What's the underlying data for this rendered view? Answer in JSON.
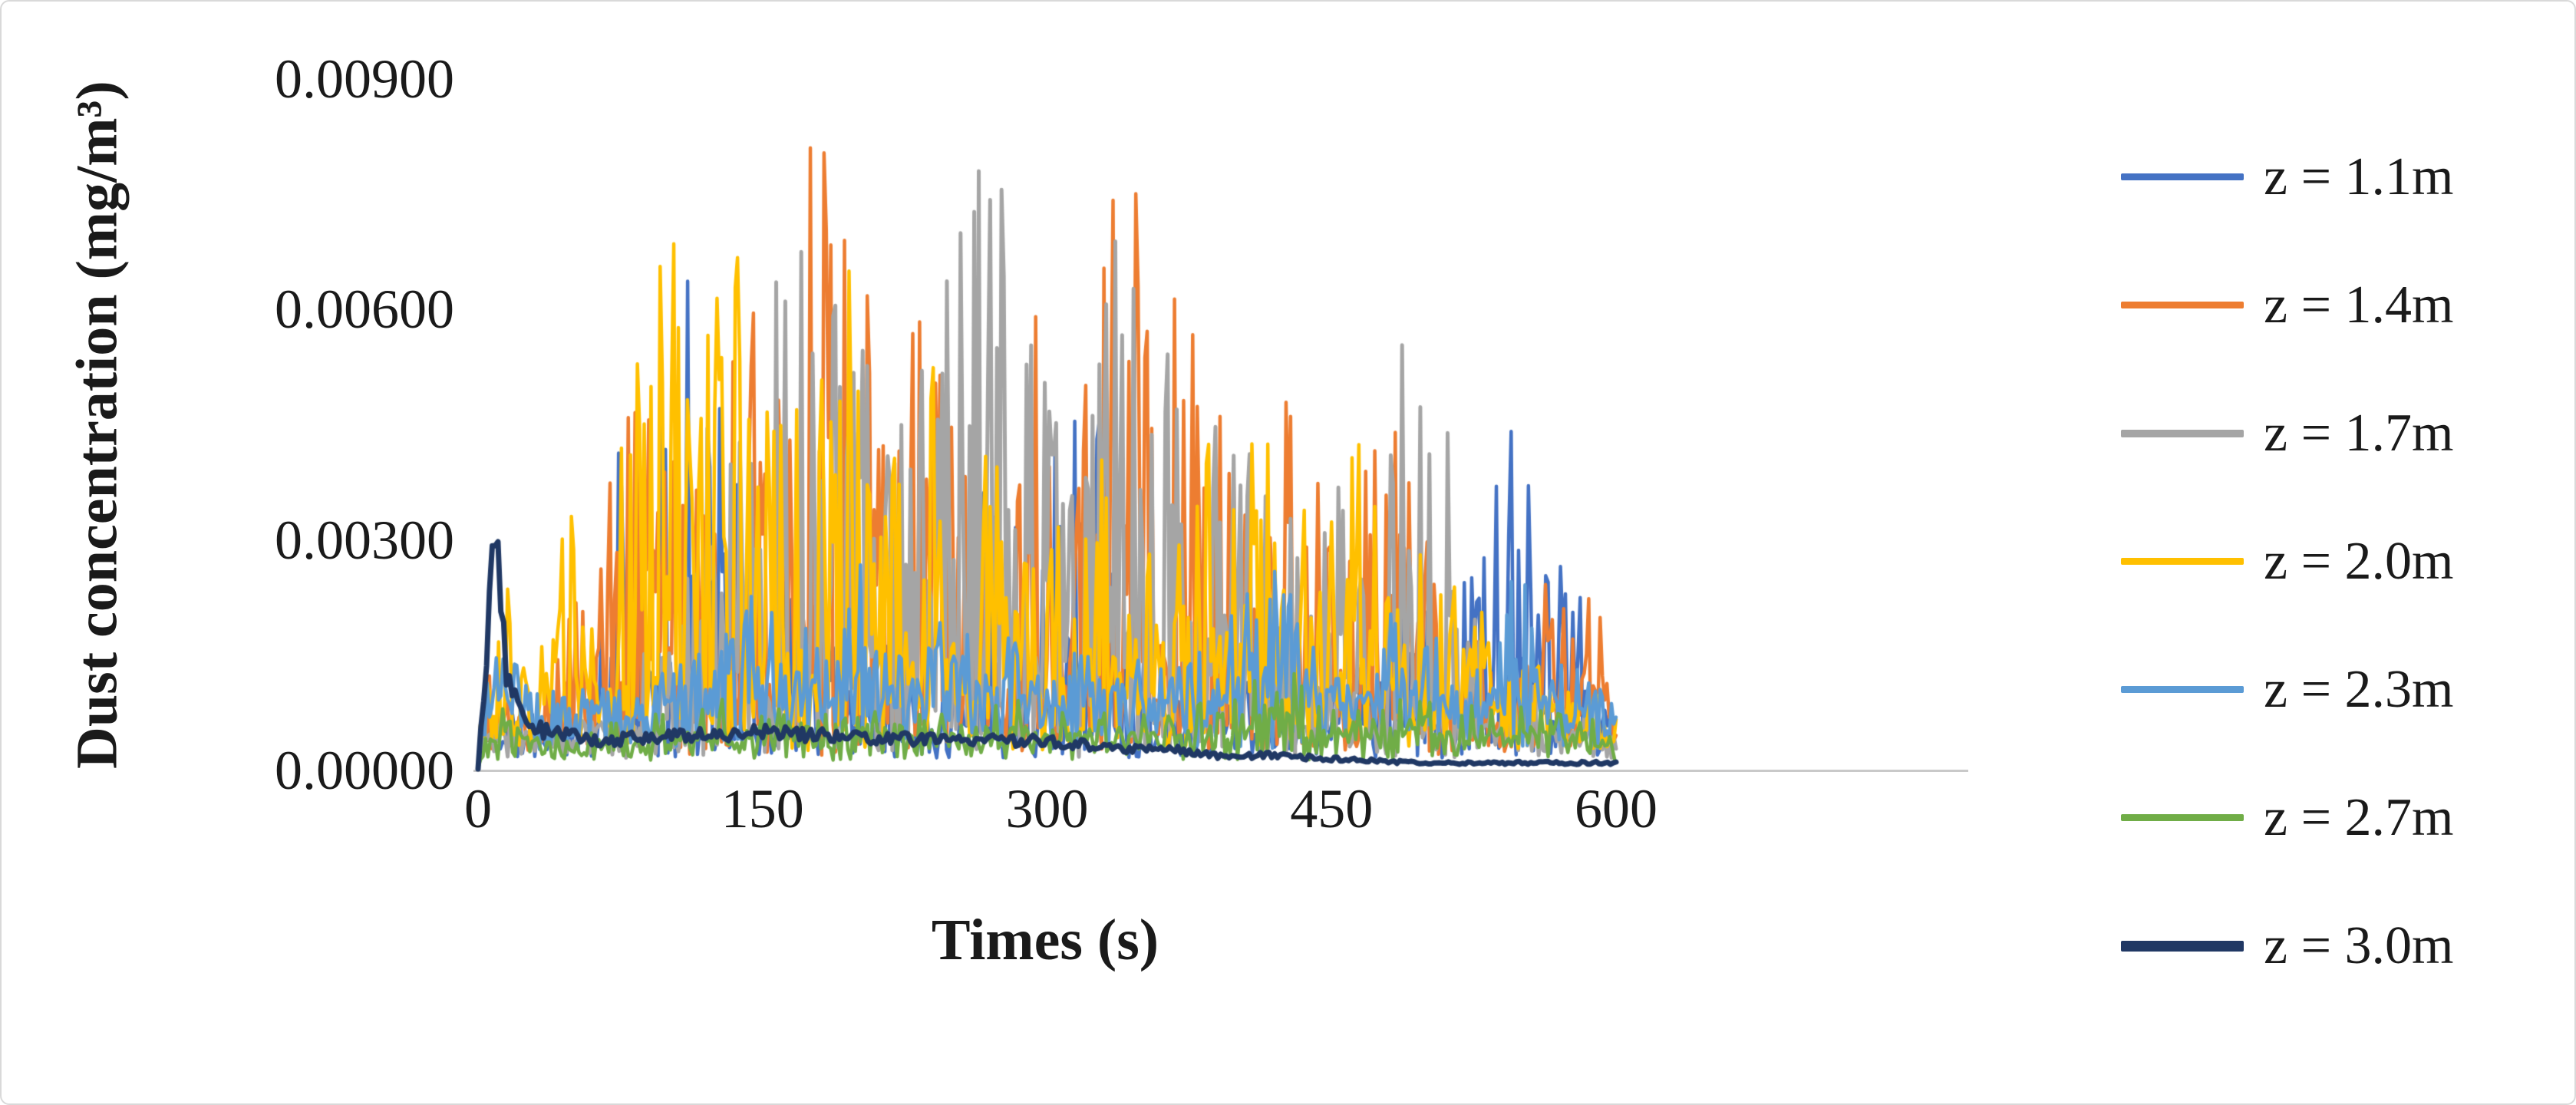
{
  "chart_data": {
    "type": "line",
    "title": "",
    "xlabel": "Times (s)",
    "ylabel": "Dust concentration (mg/m³)",
    "xlim": [
      0,
      600
    ],
    "ylim": [
      0,
      0.009
    ],
    "x_ticks": [
      {
        "value": 0,
        "label": "0"
      },
      {
        "value": 150,
        "label": "150"
      },
      {
        "value": 300,
        "label": "300"
      },
      {
        "value": 450,
        "label": "450"
      },
      {
        "value": 600,
        "label": "600"
      }
    ],
    "y_ticks": [
      {
        "value": 0.0,
        "label": "0.00000"
      },
      {
        "value": 0.003,
        "label": "0.00300"
      },
      {
        "value": 0.006,
        "label": "0.00600"
      },
      {
        "value": 0.009,
        "label": "0.00900"
      }
    ],
    "grid": "baseline-only",
    "legend_position": "right",
    "series": [
      {
        "name": "z = 1.1m",
        "color": "#4472C4",
        "line_width": 4.5,
        "seed": 11,
        "dt": 1.3,
        "mode": "spiky",
        "power": 3.0,
        "baseline": 0.0005,
        "envelope": [
          [
            0,
            0.0006
          ],
          [
            5,
            0.002
          ],
          [
            20,
            0.0008
          ],
          [
            60,
            0.001
          ],
          [
            80,
            0.0062
          ],
          [
            95,
            0.0045
          ],
          [
            115,
            0.0078
          ],
          [
            125,
            0.0074
          ],
          [
            140,
            0.003
          ],
          [
            200,
            0.0025
          ],
          [
            250,
            0.002
          ],
          [
            290,
            0.0073
          ],
          [
            310,
            0.0045
          ],
          [
            325,
            0.0063
          ],
          [
            340,
            0.002
          ],
          [
            380,
            0.0022
          ],
          [
            420,
            0.002
          ],
          [
            450,
            0.0015
          ],
          [
            480,
            0.002
          ],
          [
            520,
            0.0035
          ],
          [
            540,
            0.0056
          ],
          [
            560,
            0.0032
          ],
          [
            575,
            0.0032
          ],
          [
            590,
            0.001
          ],
          [
            600,
            0.0008
          ]
        ]
      },
      {
        "name": "z = 1.4m",
        "color": "#ED7D31",
        "line_width": 4.5,
        "seed": 14,
        "dt": 1.2,
        "mode": "spiky",
        "power": 2.4,
        "baseline": 0.0006,
        "envelope": [
          [
            0,
            0.0006
          ],
          [
            8,
            0.0015
          ],
          [
            25,
            0.0008
          ],
          [
            55,
            0.0028
          ],
          [
            65,
            0.0028
          ],
          [
            85,
            0.0073
          ],
          [
            100,
            0.0045
          ],
          [
            120,
            0.0044
          ],
          [
            140,
            0.006
          ],
          [
            160,
            0.0055
          ],
          [
            175,
            0.0086
          ],
          [
            185,
            0.0086
          ],
          [
            200,
            0.008
          ],
          [
            215,
            0.005
          ],
          [
            230,
            0.0068
          ],
          [
            245,
            0.007
          ],
          [
            260,
            0.0058
          ],
          [
            275,
            0.0046
          ],
          [
            290,
            0.0062
          ],
          [
            310,
            0.0045
          ],
          [
            330,
            0.0076
          ],
          [
            345,
            0.0082
          ],
          [
            360,
            0.0068
          ],
          [
            375,
            0.007
          ],
          [
            395,
            0.0044
          ],
          [
            410,
            0.0042
          ],
          [
            425,
            0.0057
          ],
          [
            440,
            0.0042
          ],
          [
            455,
            0.0028
          ],
          [
            470,
            0.0058
          ],
          [
            485,
            0.0052
          ],
          [
            500,
            0.003
          ],
          [
            520,
            0.002
          ],
          [
            540,
            0.0015
          ],
          [
            555,
            0.0018
          ],
          [
            570,
            0.0032
          ],
          [
            580,
            0.0015
          ],
          [
            590,
            0.0033
          ],
          [
            600,
            0.0008
          ]
        ]
      },
      {
        "name": "z = 1.7m",
        "color": "#A5A5A5",
        "line_width": 5,
        "seed": 17,
        "dt": 1.2,
        "mode": "spiky",
        "power": 2.6,
        "baseline": 0.0005,
        "envelope": [
          [
            0,
            0.0005
          ],
          [
            10,
            0.001
          ],
          [
            40,
            0.0006
          ],
          [
            90,
            0.0015
          ],
          [
            120,
            0.0035
          ],
          [
            135,
            0.0077
          ],
          [
            150,
            0.0085
          ],
          [
            165,
            0.0083
          ],
          [
            180,
            0.0065
          ],
          [
            195,
            0.0062
          ],
          [
            210,
            0.0078
          ],
          [
            225,
            0.006
          ],
          [
            240,
            0.0061
          ],
          [
            255,
            0.0085
          ],
          [
            265,
            0.0084
          ],
          [
            280,
            0.0077
          ],
          [
            295,
            0.0055
          ],
          [
            310,
            0.0045
          ],
          [
            325,
            0.005
          ],
          [
            340,
            0.0075
          ],
          [
            355,
            0.0065
          ],
          [
            370,
            0.0065
          ],
          [
            385,
            0.007
          ],
          [
            400,
            0.0042
          ],
          [
            415,
            0.0044
          ],
          [
            430,
            0.0038
          ],
          [
            445,
            0.003
          ],
          [
            460,
            0.0079
          ],
          [
            475,
            0.005
          ],
          [
            490,
            0.006
          ],
          [
            505,
            0.006
          ],
          [
            515,
            0.0042
          ],
          [
            525,
            0.003
          ],
          [
            540,
            0.002
          ],
          [
            560,
            0.001
          ],
          [
            580,
            0.0008
          ],
          [
            600,
            0.0006
          ]
        ]
      },
      {
        "name": "z = 2.0m",
        "color": "#FFC000",
        "line_width": 4.5,
        "seed": 20,
        "dt": 1.2,
        "mode": "spiky",
        "power": 2.2,
        "baseline": 0.0008,
        "envelope": [
          [
            0,
            0.0008
          ],
          [
            15,
            0.0026
          ],
          [
            30,
            0.001
          ],
          [
            55,
            0.0055
          ],
          [
            70,
            0.0045
          ],
          [
            85,
            0.006
          ],
          [
            100,
            0.0078
          ],
          [
            115,
            0.0055
          ],
          [
            130,
            0.0084
          ],
          [
            145,
            0.0062
          ],
          [
            160,
            0.0058
          ],
          [
            175,
            0.0048
          ],
          [
            190,
            0.0072
          ],
          [
            205,
            0.0055
          ],
          [
            220,
            0.0045
          ],
          [
            235,
            0.006
          ],
          [
            250,
            0.0042
          ],
          [
            265,
            0.0048
          ],
          [
            280,
            0.0035
          ],
          [
            295,
            0.0035
          ],
          [
            310,
            0.003
          ],
          [
            325,
            0.0045
          ],
          [
            340,
            0.0044
          ],
          [
            355,
            0.004
          ],
          [
            370,
            0.004
          ],
          [
            385,
            0.0042
          ],
          [
            400,
            0.0042
          ],
          [
            415,
            0.0048
          ],
          [
            430,
            0.004
          ],
          [
            445,
            0.0038
          ],
          [
            460,
            0.0063
          ],
          [
            475,
            0.0035
          ],
          [
            490,
            0.0025
          ],
          [
            505,
            0.003
          ],
          [
            520,
            0.0032
          ],
          [
            535,
            0.002
          ],
          [
            550,
            0.0015
          ],
          [
            565,
            0.0012
          ],
          [
            580,
            0.001
          ],
          [
            600,
            0.0008
          ]
        ]
      },
      {
        "name": "z = 2.3m",
        "color": "#5B9BD5",
        "line_width": 4.5,
        "seed": 23,
        "dt": 1.2,
        "mode": "spiky",
        "power": 2.4,
        "baseline": 0.0009,
        "envelope": [
          [
            0,
            0.0006
          ],
          [
            10,
            0.0022
          ],
          [
            30,
            0.0006
          ],
          [
            60,
            0.0008
          ],
          [
            90,
            0.0012
          ],
          [
            110,
            0.0018
          ],
          [
            130,
            0.0022
          ],
          [
            150,
            0.003
          ],
          [
            170,
            0.0026
          ],
          [
            190,
            0.0032
          ],
          [
            210,
            0.0022
          ],
          [
            230,
            0.0018
          ],
          [
            250,
            0.002
          ],
          [
            270,
            0.0018
          ],
          [
            290,
            0.002
          ],
          [
            310,
            0.0018
          ],
          [
            330,
            0.0016
          ],
          [
            350,
            0.0018
          ],
          [
            370,
            0.0016
          ],
          [
            390,
            0.0015
          ],
          [
            410,
            0.003
          ],
          [
            430,
            0.0022
          ],
          [
            450,
            0.0018
          ],
          [
            470,
            0.0025
          ],
          [
            490,
            0.0015
          ],
          [
            510,
            0.0018
          ],
          [
            530,
            0.0015
          ],
          [
            550,
            0.0028
          ],
          [
            570,
            0.0015
          ],
          [
            585,
            0.0012
          ],
          [
            600,
            0.0008
          ]
        ]
      },
      {
        "name": "z = 2.7m",
        "color": "#70AD47",
        "line_width": 4.5,
        "seed": 27,
        "dt": 1.3,
        "mode": "spiky",
        "power": 2.2,
        "baseline": 0.0004,
        "envelope": [
          [
            0,
            0.0004
          ],
          [
            10,
            0.0012
          ],
          [
            40,
            0.0005
          ],
          [
            80,
            0.0006
          ],
          [
            110,
            0.0008
          ],
          [
            140,
            0.001
          ],
          [
            170,
            0.0009
          ],
          [
            200,
            0.0008
          ],
          [
            230,
            0.0008
          ],
          [
            260,
            0.0009
          ],
          [
            290,
            0.0009
          ],
          [
            320,
            0.0008
          ],
          [
            350,
            0.0008
          ],
          [
            380,
            0.001
          ],
          [
            410,
            0.0012
          ],
          [
            430,
            0.0016
          ],
          [
            450,
            0.001
          ],
          [
            480,
            0.0012
          ],
          [
            510,
            0.0009
          ],
          [
            540,
            0.0008
          ],
          [
            570,
            0.0008
          ],
          [
            600,
            0.0006
          ]
        ]
      },
      {
        "name": "z = 3.0m",
        "color": "#203864",
        "line_width": 7,
        "seed": 30,
        "dt": 1.5,
        "mode": "trace",
        "power": 1.0,
        "baseline": 0.0002,
        "envelope": [
          [
            0,
            0.0002
          ],
          [
            4,
            0.001
          ],
          [
            7,
            0.0036
          ],
          [
            10,
            0.0028
          ],
          [
            15,
            0.0012
          ],
          [
            25,
            0.0006
          ],
          [
            40,
            0.0005
          ],
          [
            60,
            0.0004
          ],
          [
            100,
            0.00045
          ],
          [
            150,
            0.0005
          ],
          [
            200,
            0.00045
          ],
          [
            250,
            0.0004
          ],
          [
            300,
            0.0004
          ],
          [
            330,
            0.0003
          ],
          [
            360,
            0.0003
          ],
          [
            390,
            0.0002
          ],
          [
            420,
            0.0002
          ],
          [
            450,
            0.00015
          ],
          [
            500,
            0.0001
          ],
          [
            550,
            0.0001
          ],
          [
            600,
            0.0001
          ]
        ]
      }
    ]
  }
}
